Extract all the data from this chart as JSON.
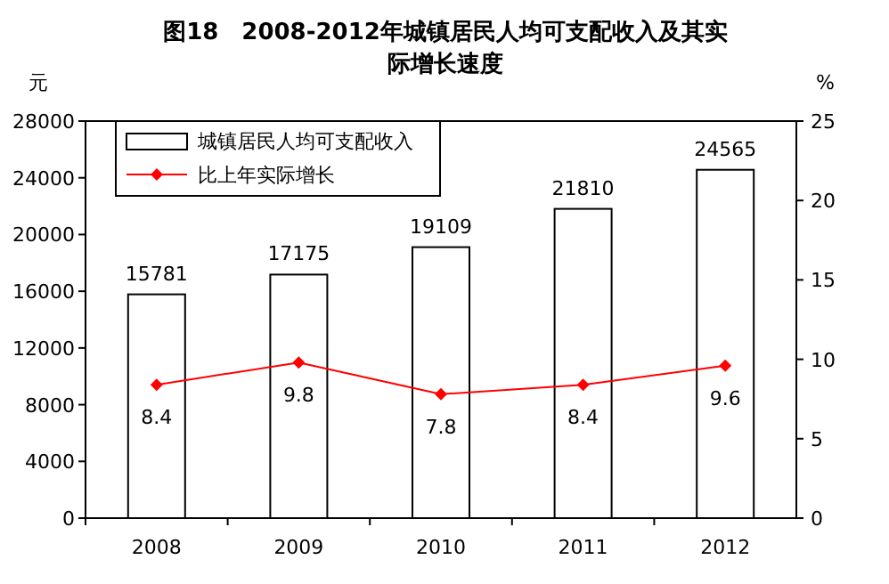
{
  "chart_data": {
    "type": "bar",
    "title": "图18　2008-2012年城镇居民人均可支配收入及其实际增长速度",
    "ylabel": "元",
    "y2label": "%",
    "categories": [
      "2008",
      "2009",
      "2010",
      "2011",
      "2012"
    ],
    "series": [
      {
        "name": "城镇居民人均可支配收入",
        "color": "#ffffff",
        "values": [
          15781,
          17175,
          19109,
          21810,
          24565
        ]
      },
      {
        "name": "比上年实际增长",
        "type": "line",
        "axis": "y2",
        "color": "#ff0000",
        "marker": "diamond",
        "values": [
          8.4,
          9.8,
          7.8,
          8.4,
          9.6
        ]
      }
    ],
    "ylim": [
      0,
      28000
    ],
    "yticks": [
      0,
      4000,
      8000,
      12000,
      16000,
      20000,
      24000,
      28000
    ],
    "y2lim": [
      0,
      25
    ],
    "y2ticks": [
      0,
      5,
      10,
      15,
      20,
      25
    ],
    "legend": "top left",
    "data_labels": true
  }
}
